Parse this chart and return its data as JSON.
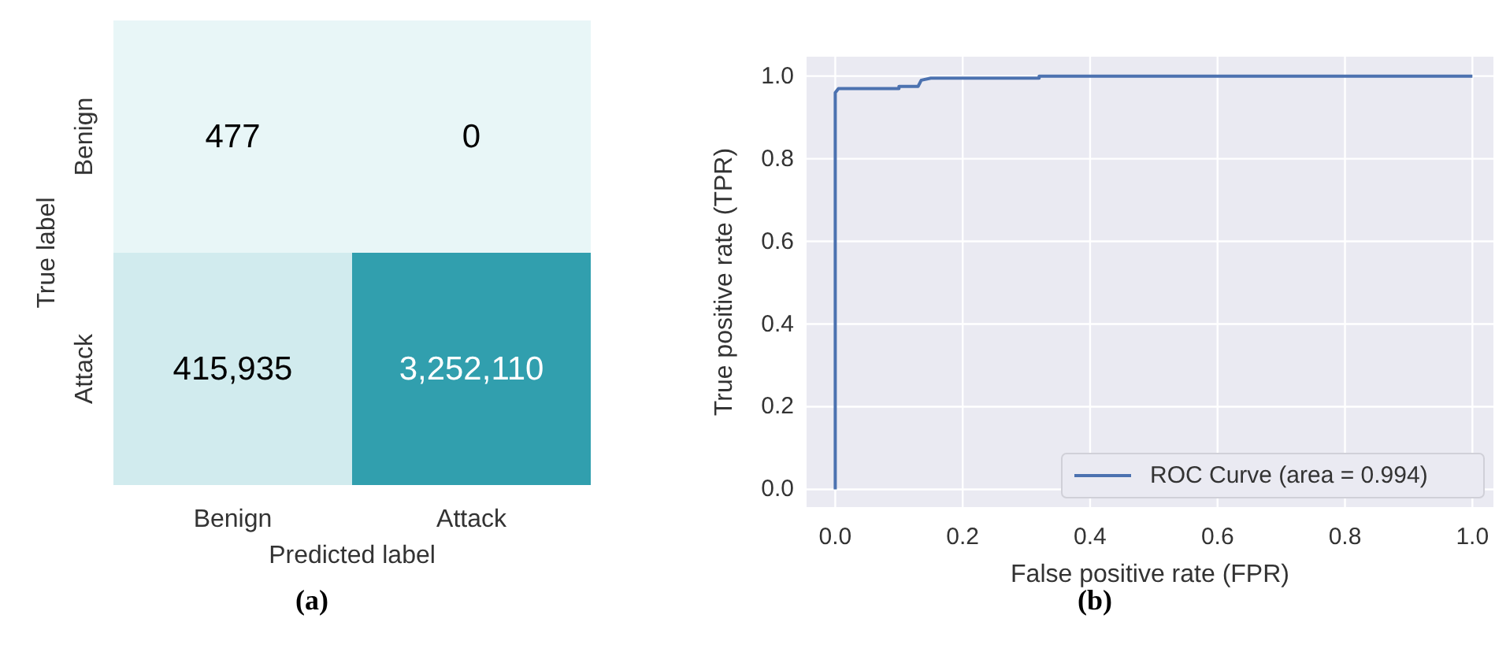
{
  "chart_data": [
    {
      "type": "heatmap",
      "categories": [
        "Benign",
        "Attack"
      ],
      "y_categories": [
        "Benign",
        "Attack"
      ],
      "xlabel": "Predicted label",
      "ylabel": "True label",
      "cells": [
        [
          477,
          0
        ],
        [
          415935,
          3252110
        ]
      ],
      "cell_labels": [
        [
          "477",
          "0"
        ],
        [
          "415,935",
          "3,252,110"
        ]
      ],
      "annotations": [
        "(a)"
      ]
    },
    {
      "type": "line",
      "xlabel": "False positive rate (FPR)",
      "ylabel": "True positive rate (TPR)",
      "xlim": [
        -0.045,
        1.033
      ],
      "ylim": [
        -0.043,
        1.047
      ],
      "xticks": [
        {
          "value": 0,
          "label": "0.0"
        },
        0.2,
        0.4,
        0.6,
        0.8,
        {
          "value": 1,
          "label": "1.0"
        }
      ],
      "yticks": [
        {
          "value": 0,
          "label": "0.0"
        },
        0.2,
        0.4,
        0.6,
        0.8,
        {
          "value": 1,
          "label": "1.0"
        }
      ],
      "grid": true,
      "legend": "bottom right",
      "series": [
        {
          "name": "ROC Curve (area = 0.994)",
          "color": "#4c72b0",
          "x": [
            0,
            0,
            0.005,
            0.1,
            0.1,
            0.13,
            0.135,
            0.15,
            0.32,
            0.32,
            1
          ],
          "values": [
            0,
            0.96,
            0.97,
            0.97,
            0.975,
            0.975,
            0.99,
            0.995,
            0.995,
            1,
            1
          ]
        }
      ],
      "annotations": [
        "(b)"
      ]
    }
  ]
}
